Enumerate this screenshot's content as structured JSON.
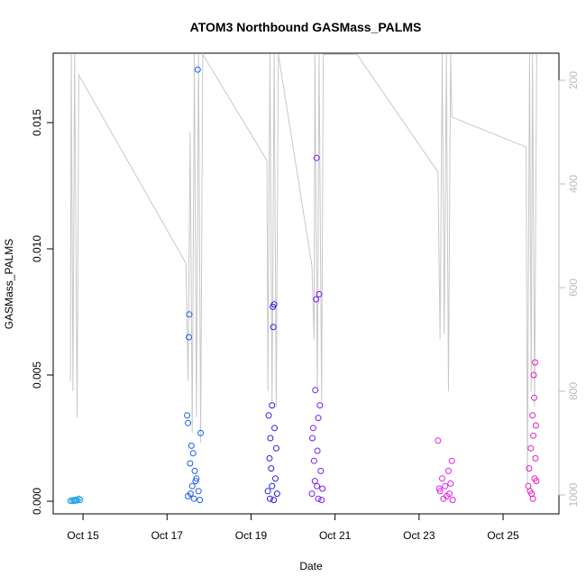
{
  "chart_data": {
    "type": "scatter",
    "title": "ATOM3 Northbound GASMass_PALMS",
    "x_label": "Date",
    "y_label": "GASMass_PALMS",
    "xlim": [
      14.29,
      26.33
    ],
    "xticks": [
      {
        "value": 15,
        "label": "Oct 15"
      },
      {
        "value": 17,
        "label": "Oct 17"
      },
      {
        "value": 19,
        "label": "Oct 19"
      },
      {
        "value": 21,
        "label": "Oct 21"
      },
      {
        "value": 23,
        "label": "Oct 23"
      },
      {
        "value": 25,
        "label": "Oct 25"
      }
    ],
    "ylim": [
      -0.0005,
      0.01775
    ],
    "yticks": [
      {
        "value": 0,
        "label": "0.000"
      },
      {
        "value": 0.005,
        "label": "0.005"
      },
      {
        "value": 0.01,
        "label": "0.010"
      },
      {
        "value": 0.015,
        "label": "0.015"
      }
    ],
    "y2lim": [
      1036.5,
      147.8
    ],
    "y2ticks": [
      200,
      400,
      600,
      800,
      1000
    ],
    "series": [
      {
        "color": "#1fa0e8",
        "x": [
          14.7,
          14.74,
          14.78,
          14.8,
          14.83,
          14.86,
          14.9,
          14.93
        ],
        "values": [
          2e-05,
          1e-05,
          4e-05,
          2e-05,
          6e-05,
          3e-05,
          0.0001,
          5e-05
        ]
      },
      {
        "color": "#1a5ee8",
        "x": [
          17.73,
          17.53,
          17.52,
          17.48,
          17.5,
          17.8,
          17.58,
          17.62,
          17.55,
          17.66,
          17.7,
          17.6,
          17.75,
          17.5,
          17.64,
          17.78,
          17.56,
          17.68
        ],
        "values": [
          0.0171,
          0.0074,
          0.0065,
          0.0034,
          0.0031,
          0.0027,
          0.0022,
          0.0019,
          0.0015,
          0.0012,
          0.0009,
          0.0006,
          0.0004,
          0.0002,
          0.0001,
          5e-05,
          0.0003,
          0.0008
        ]
      },
      {
        "color": "#2a20e0",
        "x": [
          19.55,
          19.52,
          19.53,
          19.5,
          19.42,
          19.56,
          19.46,
          19.6,
          19.44,
          19.48,
          19.58,
          19.5,
          19.62,
          19.45,
          19.54,
          19.4
        ],
        "values": [
          0.0078,
          0.0077,
          0.0069,
          0.0038,
          0.0034,
          0.0029,
          0.0025,
          0.0021,
          0.0017,
          0.0013,
          0.0009,
          0.0006,
          0.0003,
          0.0001,
          5e-05,
          0.0004
        ]
      },
      {
        "color": "#7a20e8",
        "x": [
          20.56,
          20.62,
          20.55,
          20.53,
          20.64,
          20.48,
          20.6,
          20.46,
          20.58,
          20.5,
          20.66,
          20.52,
          20.7,
          20.45,
          20.6,
          20.57,
          20.68
        ],
        "values": [
          0.0136,
          0.0082,
          0.008,
          0.0044,
          0.0038,
          0.0029,
          0.0033,
          0.0025,
          0.002,
          0.0016,
          0.0012,
          0.0008,
          0.0005,
          0.0003,
          0.0001,
          0.0006,
          5e-05
        ]
      },
      {
        "color": "#e020e8",
        "x": [
          23.45,
          23.78,
          23.7,
          23.55,
          23.62,
          23.5,
          23.75,
          23.66,
          23.58,
          23.48,
          23.8,
          23.72
        ],
        "values": [
          0.0024,
          0.0016,
          0.0012,
          0.0009,
          0.0006,
          0.0004,
          0.0007,
          0.0002,
          0.0001,
          0.0005,
          5e-05,
          0.0003
        ]
      },
      {
        "color": "#e020c0",
        "x": [
          25.76,
          25.73,
          25.74,
          25.7,
          25.78,
          25.72,
          25.66,
          25.77,
          25.62,
          25.75,
          25.6,
          25.68,
          25.71,
          25.64,
          25.79
        ],
        "values": [
          0.0055,
          0.005,
          0.0041,
          0.0034,
          0.003,
          0.0026,
          0.0021,
          0.0017,
          0.0013,
          0.0009,
          0.0006,
          0.0003,
          0.0001,
          0.0004,
          0.0008
        ]
      },
      {
        "type": "line",
        "axis": "y2",
        "color": "#c8c8c8",
        "x": [
          14.7,
          14.72,
          14.76,
          14.8,
          14.86,
          14.9,
          17.45,
          17.5,
          17.55,
          17.6,
          17.65,
          17.7,
          17.75,
          17.8,
          17.85,
          19.38,
          19.4,
          19.45,
          19.5,
          19.55,
          19.6,
          19.65,
          20.45,
          20.5,
          20.52,
          20.58,
          20.62,
          20.68,
          20.72,
          21.52,
          23.45,
          23.5,
          23.55,
          23.6,
          23.65,
          23.7,
          23.75,
          23.78,
          25.55,
          25.58,
          25.63,
          25.67,
          25.7,
          25.75,
          25.8
        ],
        "values": [
          780,
          150,
          800,
          150,
          850,
          190,
          553,
          780,
          300,
          880,
          150,
          850,
          150,
          900,
          150,
          355,
          800,
          150,
          820,
          150,
          830,
          150,
          558,
          700,
          150,
          800,
          150,
          820,
          150,
          150,
          377,
          700,
          150,
          690,
          150,
          800,
          150,
          271,
          329,
          977,
          150,
          800,
          150,
          830,
          150
        ]
      }
    ]
  }
}
